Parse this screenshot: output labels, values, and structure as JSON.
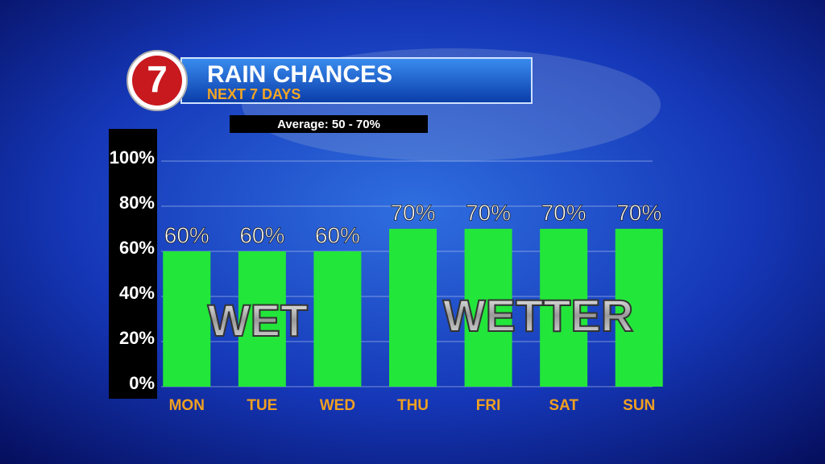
{
  "chart_data": {
    "type": "bar",
    "logo": "7",
    "title": "RAIN CHANCES",
    "subtitle": "NEXT 7 DAYS",
    "note": "Average: 50 - 70%",
    "annotations": [
      "WET",
      "WETTER"
    ],
    "categories": [
      "MON",
      "TUE",
      "WED",
      "THU",
      "FRI",
      "SAT",
      "SUN"
    ],
    "values": [
      60,
      60,
      60,
      70,
      70,
      70,
      70
    ],
    "value_labels": [
      "60%",
      "60%",
      "60%",
      "70%",
      "70%",
      "70%",
      "70%"
    ],
    "color": "#22e63a",
    "ylim": [
      0,
      100
    ],
    "yticks": [
      {
        "value": 0,
        "label": "0%"
      },
      {
        "value": 20,
        "label": "20%"
      },
      {
        "value": 40,
        "label": "40%"
      },
      {
        "value": 60,
        "label": "60%"
      },
      {
        "value": 80,
        "label": "80%"
      },
      {
        "value": 100,
        "label": "100%"
      }
    ],
    "grid": true
  }
}
